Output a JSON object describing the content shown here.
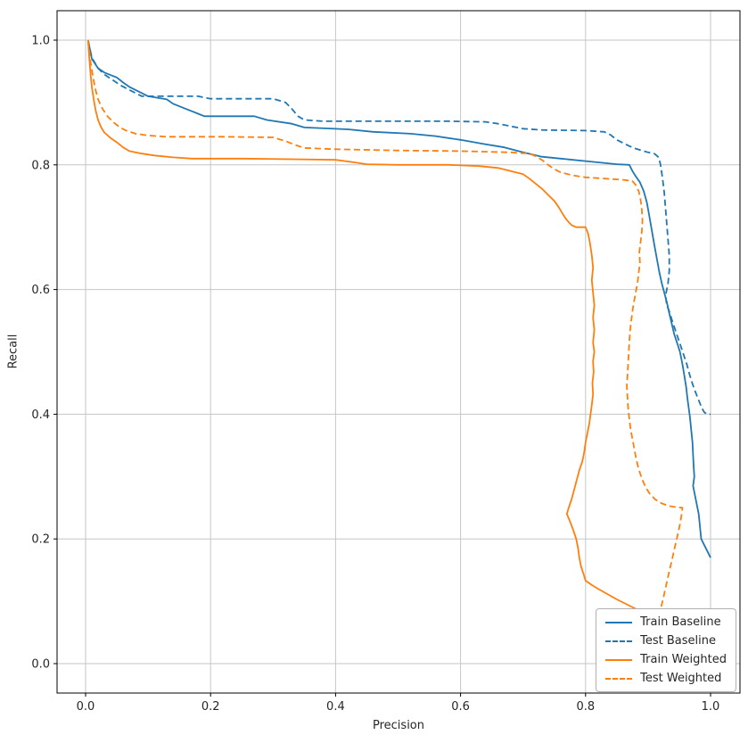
{
  "figure": {
    "xlabel": "Precision",
    "ylabel": "Recall"
  },
  "chart_data": {
    "type": "line",
    "title": "",
    "xlabel": "Precision",
    "ylabel": "Recall",
    "xlim": [
      -0.05,
      1.05
    ],
    "ylim": [
      -0.05,
      1.05
    ],
    "grid": true,
    "legend_position": "lower right",
    "xticks": [
      0.0,
      0.2,
      0.4,
      0.6,
      0.8,
      1.0
    ],
    "xtick_labels": [
      "0.0",
      "0.2",
      "0.4",
      "0.6",
      "0.8",
      "1.0"
    ],
    "yticks": [
      0.0,
      0.2,
      0.4,
      0.6,
      0.8,
      1.0
    ],
    "ytick_labels": [
      "0.0",
      "0.2",
      "0.4",
      "0.6",
      "0.8",
      "1.0"
    ],
    "series": [
      {
        "name": "Train Baseline",
        "color": "#1f77b4",
        "style": "solid",
        "points": [
          [
            0.004,
            1.0
          ],
          [
            0.01,
            0.97
          ],
          [
            0.02,
            0.955
          ],
          [
            0.03,
            0.948
          ],
          [
            0.05,
            0.94
          ],
          [
            0.06,
            0.932
          ],
          [
            0.07,
            0.925
          ],
          [
            0.09,
            0.915
          ],
          [
            0.1,
            0.91
          ],
          [
            0.13,
            0.905
          ],
          [
            0.14,
            0.898
          ],
          [
            0.16,
            0.89
          ],
          [
            0.18,
            0.882
          ],
          [
            0.19,
            0.878
          ],
          [
            0.27,
            0.878
          ],
          [
            0.29,
            0.872
          ],
          [
            0.33,
            0.866
          ],
          [
            0.35,
            0.86
          ],
          [
            0.42,
            0.857
          ],
          [
            0.46,
            0.853
          ],
          [
            0.52,
            0.85
          ],
          [
            0.56,
            0.846
          ],
          [
            0.6,
            0.84
          ],
          [
            0.64,
            0.833
          ],
          [
            0.67,
            0.828
          ],
          [
            0.7,
            0.82
          ],
          [
            0.73,
            0.813
          ],
          [
            0.76,
            0.81
          ],
          [
            0.8,
            0.806
          ],
          [
            0.85,
            0.801
          ],
          [
            0.87,
            0.8
          ],
          [
            0.875,
            0.79
          ],
          [
            0.88,
            0.782
          ],
          [
            0.887,
            0.772
          ],
          [
            0.893,
            0.758
          ],
          [
            0.898,
            0.74
          ],
          [
            0.902,
            0.718
          ],
          [
            0.906,
            0.695
          ],
          [
            0.91,
            0.672
          ],
          [
            0.914,
            0.65
          ],
          [
            0.918,
            0.628
          ],
          [
            0.922,
            0.61
          ],
          [
            0.926,
            0.595
          ],
          [
            0.93,
            0.58
          ],
          [
            0.934,
            0.562
          ],
          [
            0.938,
            0.545
          ],
          [
            0.942,
            0.528
          ],
          [
            0.947,
            0.513
          ],
          [
            0.951,
            0.5
          ],
          [
            0.955,
            0.48
          ],
          [
            0.958,
            0.462
          ],
          [
            0.961,
            0.443
          ],
          [
            0.963,
            0.425
          ],
          [
            0.965,
            0.41
          ],
          [
            0.967,
            0.395
          ],
          [
            0.969,
            0.375
          ],
          [
            0.971,
            0.355
          ],
          [
            0.972,
            0.335
          ],
          [
            0.973,
            0.315
          ],
          [
            0.974,
            0.3
          ],
          [
            0.972,
            0.285
          ],
          [
            0.975,
            0.27
          ],
          [
            0.978,
            0.255
          ],
          [
            0.981,
            0.24
          ],
          [
            0.983,
            0.22
          ],
          [
            0.985,
            0.2
          ],
          [
            0.99,
            0.19
          ],
          [
            0.995,
            0.18
          ],
          [
            1.0,
            0.17
          ]
        ]
      },
      {
        "name": "Test Baseline",
        "color": "#1f77b4",
        "style": "dashed",
        "points": [
          [
            0.004,
            1.0
          ],
          [
            0.01,
            0.972
          ],
          [
            0.02,
            0.955
          ],
          [
            0.03,
            0.945
          ],
          [
            0.045,
            0.935
          ],
          [
            0.055,
            0.928
          ],
          [
            0.07,
            0.92
          ],
          [
            0.08,
            0.915
          ],
          [
            0.09,
            0.91
          ],
          [
            0.18,
            0.91
          ],
          [
            0.2,
            0.906
          ],
          [
            0.3,
            0.906
          ],
          [
            0.32,
            0.9
          ],
          [
            0.33,
            0.89
          ],
          [
            0.34,
            0.878
          ],
          [
            0.35,
            0.872
          ],
          [
            0.38,
            0.87
          ],
          [
            0.52,
            0.87
          ],
          [
            0.58,
            0.87
          ],
          [
            0.64,
            0.869
          ],
          [
            0.66,
            0.866
          ],
          [
            0.68,
            0.862
          ],
          [
            0.7,
            0.858
          ],
          [
            0.73,
            0.856
          ],
          [
            0.8,
            0.855
          ],
          [
            0.83,
            0.853
          ],
          [
            0.84,
            0.848
          ],
          [
            0.85,
            0.84
          ],
          [
            0.86,
            0.835
          ],
          [
            0.87,
            0.83
          ],
          [
            0.88,
            0.826
          ],
          [
            0.89,
            0.823
          ],
          [
            0.9,
            0.82
          ],
          [
            0.91,
            0.818
          ],
          [
            0.917,
            0.812
          ],
          [
            0.92,
            0.8
          ],
          [
            0.923,
            0.78
          ],
          [
            0.926,
            0.755
          ],
          [
            0.928,
            0.73
          ],
          [
            0.93,
            0.705
          ],
          [
            0.932,
            0.68
          ],
          [
            0.934,
            0.655
          ],
          [
            0.934,
            0.63
          ],
          [
            0.932,
            0.61
          ],
          [
            0.93,
            0.6
          ],
          [
            0.928,
            0.59
          ],
          [
            0.93,
            0.575
          ],
          [
            0.934,
            0.565
          ],
          [
            0.938,
            0.552
          ],
          [
            0.942,
            0.54
          ],
          [
            0.947,
            0.525
          ],
          [
            0.952,
            0.51
          ],
          [
            0.957,
            0.495
          ],
          [
            0.962,
            0.48
          ],
          [
            0.966,
            0.465
          ],
          [
            0.97,
            0.452
          ],
          [
            0.974,
            0.44
          ],
          [
            0.978,
            0.43
          ],
          [
            0.982,
            0.42
          ],
          [
            0.986,
            0.41
          ],
          [
            0.99,
            0.403
          ],
          [
            0.995,
            0.4
          ],
          [
            1.0,
            0.4
          ]
        ]
      },
      {
        "name": "Train Weighted",
        "color": "#ff7f0e",
        "style": "solid",
        "points": [
          [
            0.004,
            1.0
          ],
          [
            0.006,
            0.97
          ],
          [
            0.008,
            0.945
          ],
          [
            0.01,
            0.925
          ],
          [
            0.013,
            0.905
          ],
          [
            0.016,
            0.888
          ],
          [
            0.02,
            0.872
          ],
          [
            0.025,
            0.86
          ],
          [
            0.03,
            0.852
          ],
          [
            0.04,
            0.843
          ],
          [
            0.05,
            0.836
          ],
          [
            0.06,
            0.828
          ],
          [
            0.07,
            0.822
          ],
          [
            0.09,
            0.818
          ],
          [
            0.11,
            0.815
          ],
          [
            0.14,
            0.812
          ],
          [
            0.17,
            0.81
          ],
          [
            0.25,
            0.81
          ],
          [
            0.33,
            0.809
          ],
          [
            0.4,
            0.808
          ],
          [
            0.43,
            0.804
          ],
          [
            0.45,
            0.801
          ],
          [
            0.5,
            0.8
          ],
          [
            0.58,
            0.8
          ],
          [
            0.63,
            0.798
          ],
          [
            0.66,
            0.795
          ],
          [
            0.68,
            0.79
          ],
          [
            0.7,
            0.785
          ],
          [
            0.71,
            0.778
          ],
          [
            0.72,
            0.77
          ],
          [
            0.73,
            0.762
          ],
          [
            0.74,
            0.752
          ],
          [
            0.75,
            0.742
          ],
          [
            0.757,
            0.732
          ],
          [
            0.763,
            0.722
          ],
          [
            0.768,
            0.714
          ],
          [
            0.773,
            0.708
          ],
          [
            0.778,
            0.703
          ],
          [
            0.785,
            0.7
          ],
          [
            0.8,
            0.7
          ],
          [
            0.804,
            0.69
          ],
          [
            0.807,
            0.675
          ],
          [
            0.81,
            0.655
          ],
          [
            0.812,
            0.635
          ],
          [
            0.81,
            0.615
          ],
          [
            0.812,
            0.595
          ],
          [
            0.814,
            0.575
          ],
          [
            0.812,
            0.555
          ],
          [
            0.814,
            0.535
          ],
          [
            0.812,
            0.515
          ],
          [
            0.814,
            0.5
          ],
          [
            0.812,
            0.485
          ],
          [
            0.813,
            0.468
          ],
          [
            0.811,
            0.45
          ],
          [
            0.812,
            0.432
          ],
          [
            0.81,
            0.415
          ],
          [
            0.808,
            0.4
          ],
          [
            0.806,
            0.385
          ],
          [
            0.803,
            0.37
          ],
          [
            0.8,
            0.355
          ],
          [
            0.798,
            0.34
          ],
          [
            0.795,
            0.325
          ],
          [
            0.79,
            0.31
          ],
          [
            0.786,
            0.295
          ],
          [
            0.782,
            0.28
          ],
          [
            0.778,
            0.265
          ],
          [
            0.773,
            0.25
          ],
          [
            0.77,
            0.24
          ],
          [
            0.775,
            0.228
          ],
          [
            0.78,
            0.215
          ],
          [
            0.785,
            0.2
          ],
          [
            0.788,
            0.185
          ],
          [
            0.79,
            0.17
          ],
          [
            0.793,
            0.155
          ],
          [
            0.797,
            0.143
          ],
          [
            0.8,
            0.133
          ],
          [
            0.81,
            0.126
          ],
          [
            0.82,
            0.12
          ],
          [
            0.85,
            0.103
          ],
          [
            0.88,
            0.088
          ],
          [
            0.91,
            0.072
          ],
          [
            0.94,
            0.058
          ],
          [
            0.97,
            0.042
          ],
          [
            1.0,
            0.025
          ]
        ]
      },
      {
        "name": "Test Weighted",
        "color": "#ff7f0e",
        "style": "dashed",
        "points": [
          [
            0.004,
            1.0
          ],
          [
            0.008,
            0.965
          ],
          [
            0.012,
            0.94
          ],
          [
            0.016,
            0.92
          ],
          [
            0.02,
            0.905
          ],
          [
            0.027,
            0.89
          ],
          [
            0.035,
            0.878
          ],
          [
            0.045,
            0.868
          ],
          [
            0.055,
            0.86
          ],
          [
            0.065,
            0.855
          ],
          [
            0.08,
            0.85
          ],
          [
            0.1,
            0.847
          ],
          [
            0.13,
            0.845
          ],
          [
            0.22,
            0.845
          ],
          [
            0.3,
            0.844
          ],
          [
            0.32,
            0.838
          ],
          [
            0.335,
            0.832
          ],
          [
            0.35,
            0.827
          ],
          [
            0.4,
            0.825
          ],
          [
            0.5,
            0.823
          ],
          [
            0.6,
            0.822
          ],
          [
            0.68,
            0.82
          ],
          [
            0.71,
            0.818
          ],
          [
            0.72,
            0.814
          ],
          [
            0.73,
            0.808
          ],
          [
            0.74,
            0.8
          ],
          [
            0.75,
            0.793
          ],
          [
            0.76,
            0.788
          ],
          [
            0.78,
            0.783
          ],
          [
            0.8,
            0.78
          ],
          [
            0.83,
            0.778
          ],
          [
            0.86,
            0.776
          ],
          [
            0.875,
            0.774
          ],
          [
            0.88,
            0.768
          ],
          [
            0.885,
            0.758
          ],
          [
            0.888,
            0.744
          ],
          [
            0.89,
            0.728
          ],
          [
            0.891,
            0.71
          ],
          [
            0.89,
            0.693
          ],
          [
            0.888,
            0.676
          ],
          [
            0.886,
            0.66
          ],
          [
            0.887,
            0.643
          ],
          [
            0.885,
            0.627
          ],
          [
            0.883,
            0.61
          ],
          [
            0.88,
            0.594
          ],
          [
            0.877,
            0.578
          ],
          [
            0.875,
            0.565
          ],
          [
            0.873,
            0.55
          ],
          [
            0.871,
            0.532
          ],
          [
            0.87,
            0.515
          ],
          [
            0.869,
            0.498
          ],
          [
            0.868,
            0.48
          ],
          [
            0.867,
            0.462
          ],
          [
            0.866,
            0.445
          ],
          [
            0.867,
            0.428
          ],
          [
            0.868,
            0.41
          ],
          [
            0.87,
            0.393
          ],
          [
            0.872,
            0.376
          ],
          [
            0.875,
            0.36
          ],
          [
            0.878,
            0.344
          ],
          [
            0.881,
            0.328
          ],
          [
            0.885,
            0.312
          ],
          [
            0.89,
            0.297
          ],
          [
            0.896,
            0.283
          ],
          [
            0.903,
            0.272
          ],
          [
            0.912,
            0.263
          ],
          [
            0.922,
            0.257
          ],
          [
            0.933,
            0.253
          ],
          [
            0.945,
            0.251
          ],
          [
            0.955,
            0.25
          ],
          [
            0.953,
            0.235
          ],
          [
            0.95,
            0.218
          ],
          [
            0.946,
            0.2
          ],
          [
            0.942,
            0.183
          ],
          [
            0.938,
            0.165
          ],
          [
            0.934,
            0.148
          ],
          [
            0.93,
            0.13
          ],
          [
            0.926,
            0.112
          ],
          [
            0.922,
            0.095
          ],
          [
            0.918,
            0.08
          ],
          [
            0.915,
            0.068
          ]
        ]
      }
    ]
  }
}
